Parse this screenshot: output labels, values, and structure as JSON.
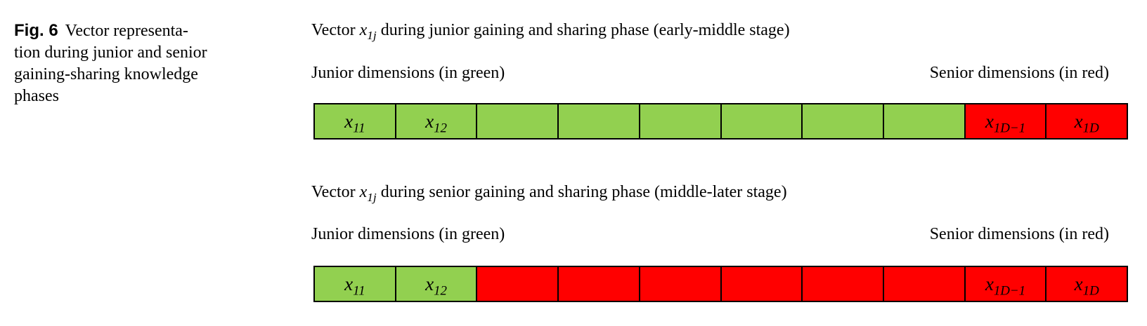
{
  "caption": {
    "label": "Fig. 6",
    "lines": [
      "Vector representa-",
      "tion during junior and senior",
      "gaining-sharing knowledge",
      "phases"
    ]
  },
  "colors": {
    "junior_green": "#92d050",
    "senior_red": "#ff0000",
    "border": "#000000",
    "text": "#000000"
  },
  "sections": [
    {
      "heading": {
        "pre": "Vector ",
        "math_base": "x",
        "math_sub": "1j",
        "post": " during junior gaining and sharing phase (early-middle stage)"
      },
      "junior_label": "Junior dimensions (in green)",
      "senior_label": "Senior dimensions (in red)",
      "cells": [
        {
          "color": "green",
          "base": "x",
          "sub": "11"
        },
        {
          "color": "green",
          "base": "x",
          "sub": "12"
        },
        {
          "color": "green"
        },
        {
          "color": "green"
        },
        {
          "color": "green"
        },
        {
          "color": "green"
        },
        {
          "color": "green"
        },
        {
          "color": "green"
        },
        {
          "color": "red",
          "base": "x",
          "sub": "1D−1"
        },
        {
          "color": "red",
          "base": "x",
          "sub": "1D"
        }
      ]
    },
    {
      "heading": {
        "pre": "Vector ",
        "math_base": "x",
        "math_sub": "1j",
        "post": " during senior gaining and sharing phase (middle-later stage)"
      },
      "junior_label": "Junior dimensions (in green)",
      "senior_label": "Senior dimensions (in red)",
      "cells": [
        {
          "color": "green",
          "base": "x",
          "sub": "11"
        },
        {
          "color": "green",
          "base": "x",
          "sub": "12"
        },
        {
          "color": "red"
        },
        {
          "color": "red"
        },
        {
          "color": "red"
        },
        {
          "color": "red"
        },
        {
          "color": "red"
        },
        {
          "color": "red"
        },
        {
          "color": "red",
          "base": "x",
          "sub": "1D−1"
        },
        {
          "color": "red",
          "base": "x",
          "sub": "1D"
        }
      ]
    }
  ]
}
